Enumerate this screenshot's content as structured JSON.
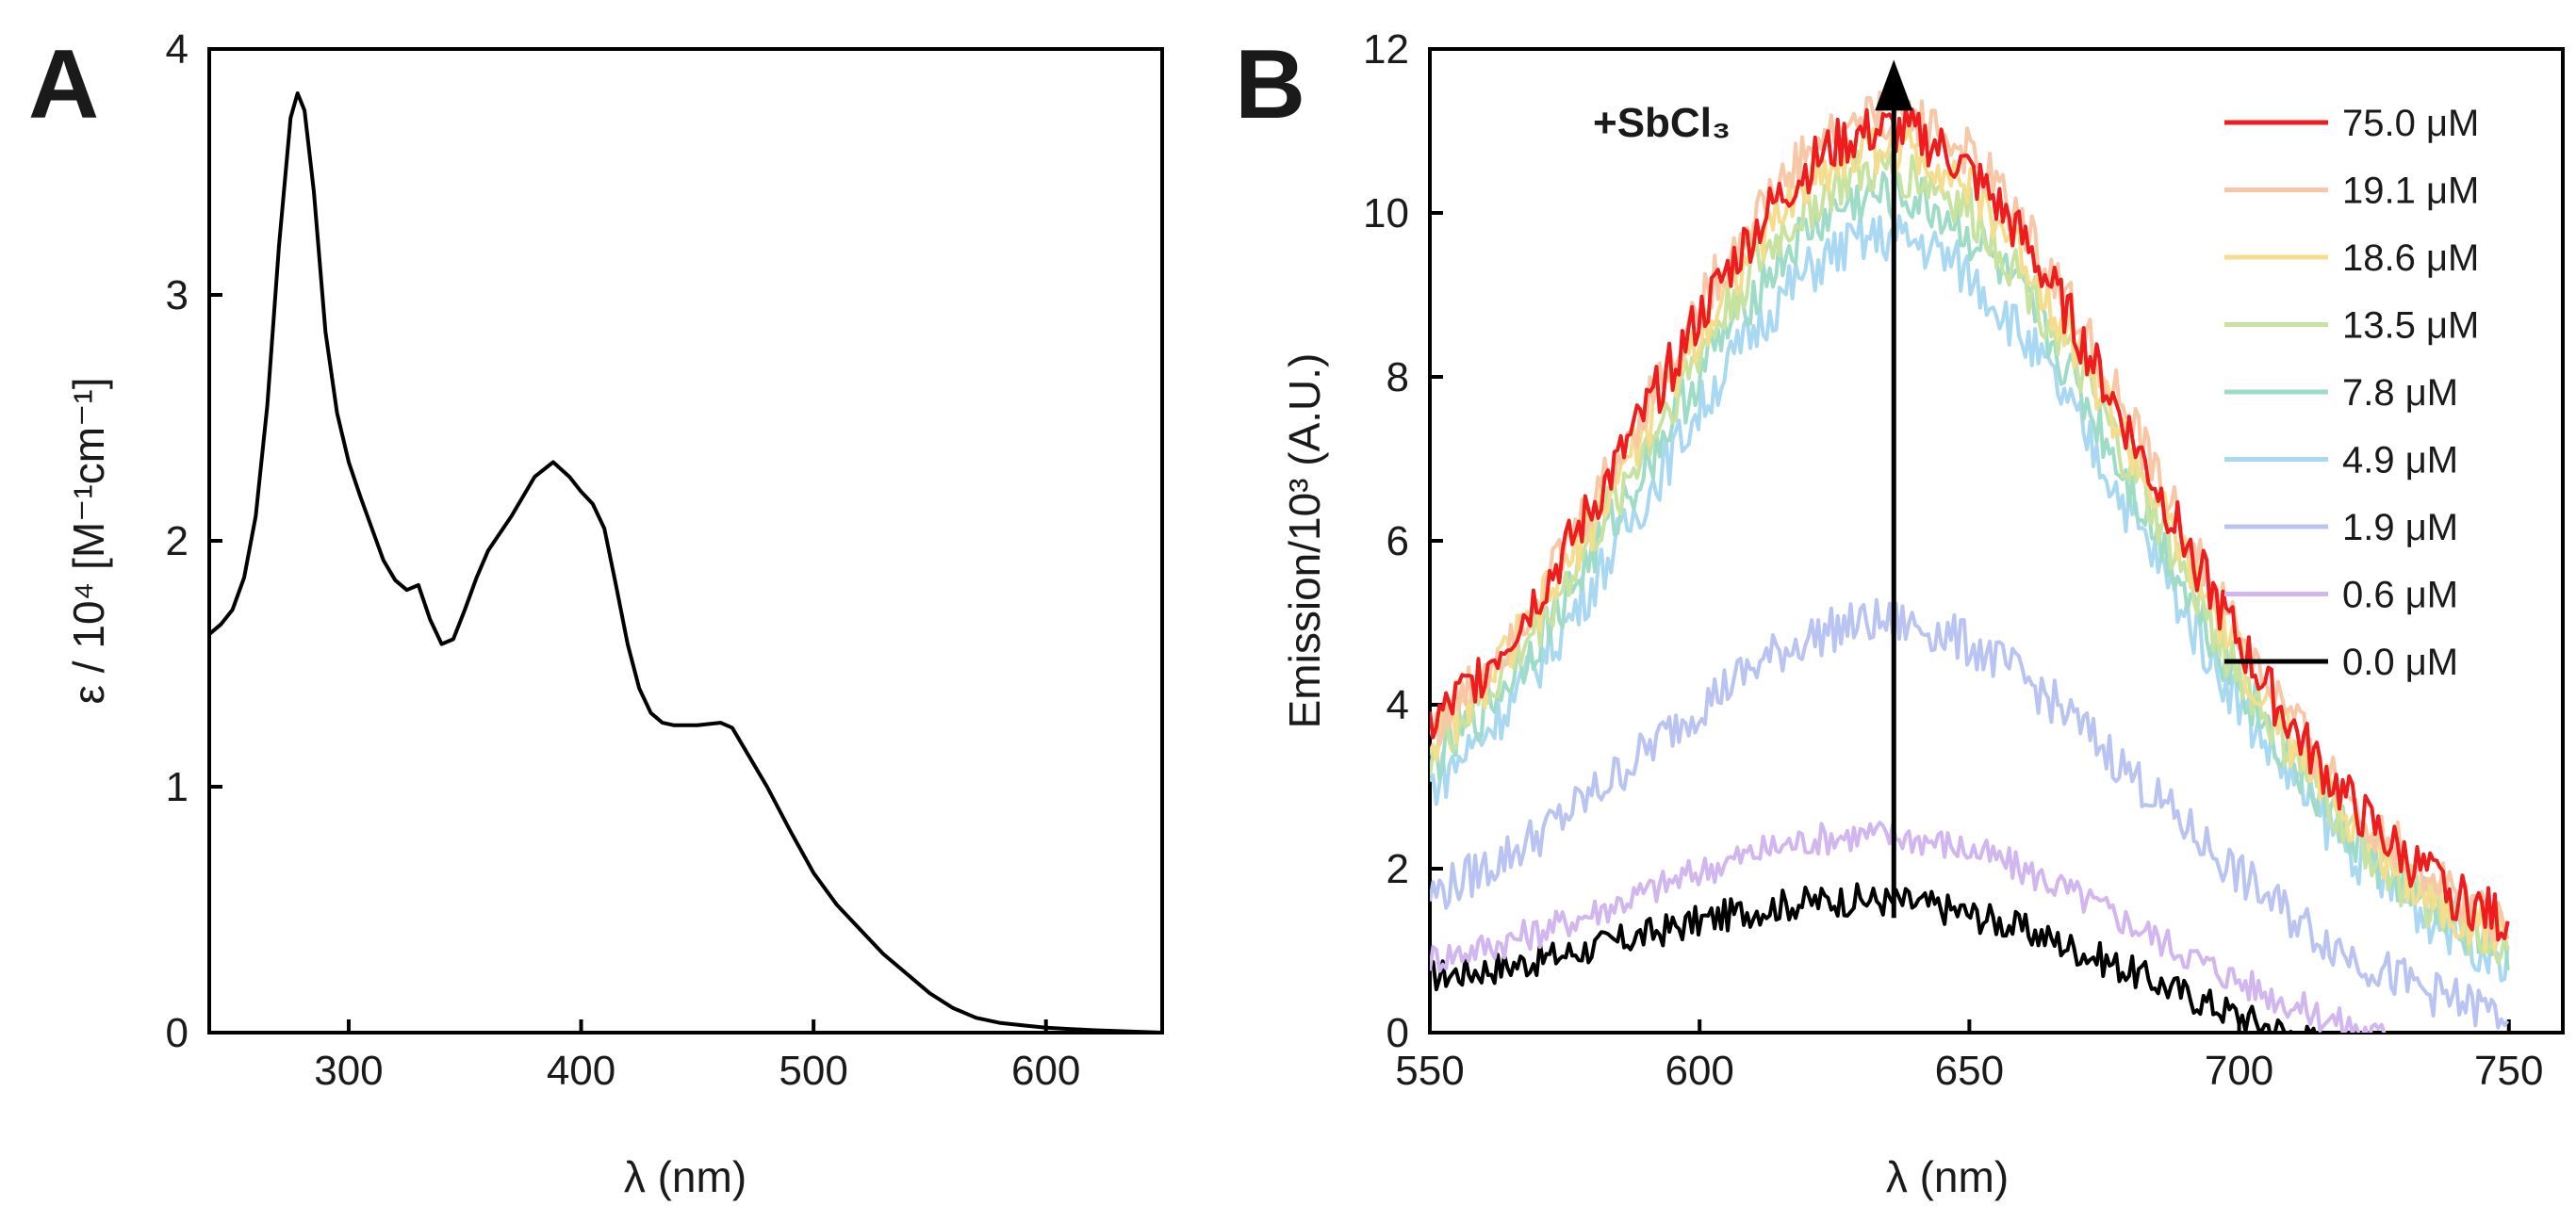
{
  "chart_data": [
    {
      "type": "line",
      "panel": "A",
      "title": "",
      "xlabel": "λ (nm)",
      "ylabel": "ε / 10⁴ [M⁻¹cm⁻¹]",
      "xlim": [
        240,
        650
      ],
      "ylim": [
        0,
        4
      ],
      "xticks": [
        300,
        400,
        500,
        600
      ],
      "yticks": [
        0,
        1,
        2,
        3,
        4
      ],
      "grid": false,
      "series": [
        {
          "name": "absorption",
          "color": "#000000",
          "points": [
            [
              240,
              1.62
            ],
            [
              245,
              1.66
            ],
            [
              250,
              1.72
            ],
            [
              255,
              1.85
            ],
            [
              260,
              2.1
            ],
            [
              265,
              2.55
            ],
            [
              270,
              3.2
            ],
            [
              275,
              3.72
            ],
            [
              278,
              3.82
            ],
            [
              281,
              3.75
            ],
            [
              285,
              3.42
            ],
            [
              290,
              2.85
            ],
            [
              295,
              2.52
            ],
            [
              300,
              2.32
            ],
            [
              305,
              2.18
            ],
            [
              310,
              2.05
            ],
            [
              315,
              1.92
            ],
            [
              320,
              1.84
            ],
            [
              325,
              1.8
            ],
            [
              330,
              1.82
            ],
            [
              335,
              1.68
            ],
            [
              340,
              1.58
            ],
            [
              345,
              1.6
            ],
            [
              350,
              1.72
            ],
            [
              355,
              1.85
            ],
            [
              360,
              1.96
            ],
            [
              370,
              2.1
            ],
            [
              380,
              2.26
            ],
            [
              388,
              2.32
            ],
            [
              395,
              2.26
            ],
            [
              400,
              2.2
            ],
            [
              405,
              2.15
            ],
            [
              410,
              2.05
            ],
            [
              415,
              1.82
            ],
            [
              420,
              1.58
            ],
            [
              425,
              1.4
            ],
            [
              430,
              1.3
            ],
            [
              435,
              1.26
            ],
            [
              440,
              1.25
            ],
            [
              450,
              1.25
            ],
            [
              460,
              1.26
            ],
            [
              465,
              1.24
            ],
            [
              470,
              1.16
            ],
            [
              480,
              1.0
            ],
            [
              490,
              0.82
            ],
            [
              500,
              0.65
            ],
            [
              510,
              0.52
            ],
            [
              520,
              0.42
            ],
            [
              530,
              0.32
            ],
            [
              540,
              0.24
            ],
            [
              550,
              0.16
            ],
            [
              560,
              0.1
            ],
            [
              570,
              0.06
            ],
            [
              580,
              0.04
            ],
            [
              590,
              0.03
            ],
            [
              600,
              0.02
            ],
            [
              610,
              0.015
            ],
            [
              620,
              0.01
            ],
            [
              650,
              0.0
            ]
          ]
        }
      ]
    },
    {
      "type": "line",
      "panel": "B",
      "title": "",
      "xlabel": "λ (nm)",
      "ylabel": "Emission/10³ (A.U.)",
      "xlim": [
        550,
        760
      ],
      "ylim": [
        0,
        12
      ],
      "xticks": [
        550,
        600,
        650,
        700,
        750
      ],
      "yticks": [
        0,
        2,
        4,
        6,
        8,
        10,
        12
      ],
      "grid": false,
      "annotation": {
        "text": "+SbCl₃",
        "arrow_x": 636,
        "arrow_y_from": 1.4,
        "arrow_y_to": 11.8
      },
      "series": [
        {
          "name": "75.0 μM",
          "color": "#ee1c1c",
          "peak": 11.0,
          "base": 2.1,
          "end": 0.9,
          "noise": 0.32
        },
        {
          "name": "19.1 μM",
          "color": "#f7c7a6",
          "peak": 11.2,
          "base": 2.0,
          "end": 0.9,
          "noise": 0.32
        },
        {
          "name": "18.6 μM",
          "color": "#f4de8e",
          "peak": 10.8,
          "base": 1.9,
          "end": 0.7,
          "noise": 0.32
        },
        {
          "name": "13.5 μM",
          "color": "#c8e3a0",
          "peak": 10.5,
          "base": 1.8,
          "end": 0.6,
          "noise": 0.32
        },
        {
          "name": "7.8 μM",
          "color": "#9fdcc8",
          "peak": 10.2,
          "base": 1.7,
          "end": 0.6,
          "noise": 0.32
        },
        {
          "name": "4.9 μM",
          "color": "#a9d8f2",
          "peak": 9.7,
          "base": 1.5,
          "end": 0.5,
          "noise": 0.32
        },
        {
          "name": "1.9 μM",
          "color": "#b9c4f2",
          "peak": 5.0,
          "base": 0.9,
          "end": 0.0,
          "noise": 0.28
        },
        {
          "name": "0.6 μM",
          "color": "#d2b6ef",
          "peak": 2.4,
          "base": 0.5,
          "end": -0.5,
          "noise": 0.2
        },
        {
          "name": "0.0 μM",
          "color": "#000000",
          "peak": 1.6,
          "base": 0.4,
          "end": -0.7,
          "noise": 0.2
        }
      ]
    }
  ]
}
